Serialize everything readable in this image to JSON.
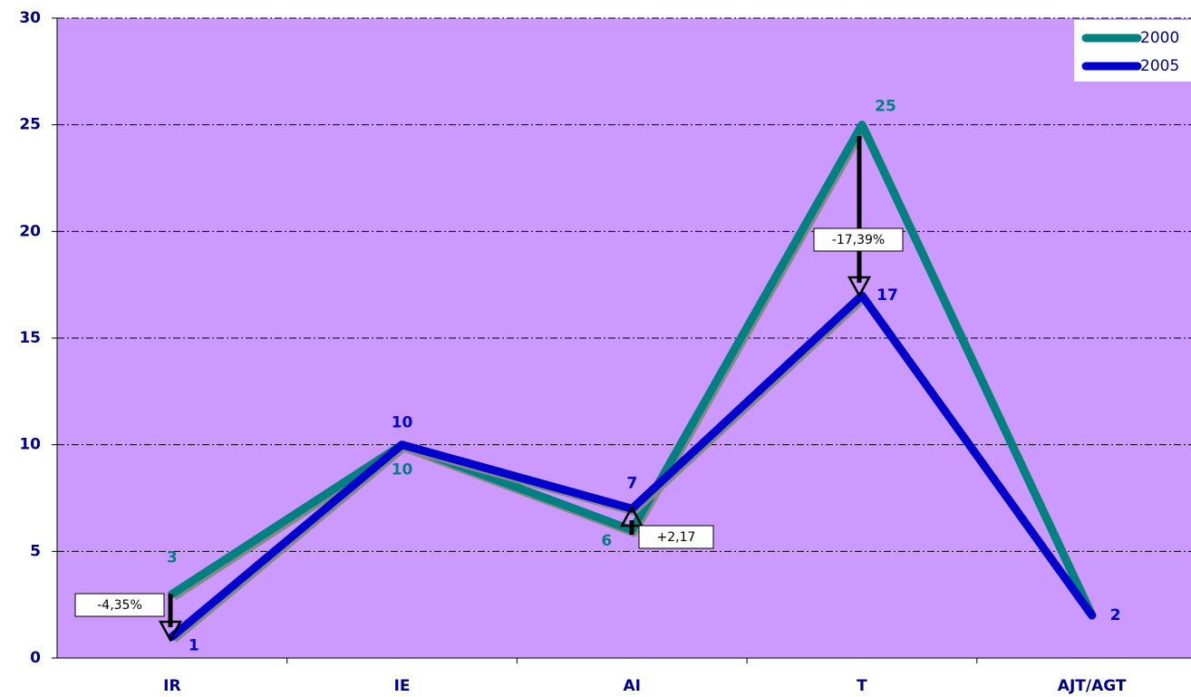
{
  "chart_data": {
    "type": "line",
    "categories": [
      "IR",
      "IE",
      "AI",
      "T",
      "AJT/AGT"
    ],
    "series": [
      {
        "name": "2000",
        "color": "#008080",
        "values": [
          3,
          10,
          6,
          25,
          2
        ]
      },
      {
        "name": "2005",
        "color": "#0000cc",
        "values": [
          1,
          10,
          7,
          17,
          2
        ]
      }
    ],
    "ylim": [
      0,
      30
    ],
    "yticks": [
      0,
      5,
      10,
      15,
      20,
      25,
      30
    ],
    "grid": true,
    "legend": "top-right",
    "background": "#cc99ff",
    "annotations": [
      "-4,35%",
      "+2,17",
      "-17,39%"
    ]
  }
}
